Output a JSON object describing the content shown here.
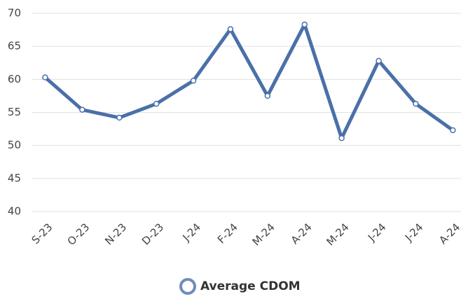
{
  "chart_data": {
    "type": "line",
    "categories": [
      "S-23",
      "O-23",
      "N-23",
      "D-23",
      "J-24",
      "F-24",
      "M-24",
      "A-24",
      "M-24",
      "J-24",
      "J-24",
      "A-24"
    ],
    "series": [
      {
        "name": "Average CDOM",
        "color": "#4a70a8",
        "values": [
          60.3,
          55.4,
          54.2,
          56.3,
          59.8,
          67.6,
          57.5,
          68.3,
          51.1,
          62.8,
          56.3,
          52.3
        ]
      }
    ],
    "ylim": [
      40,
      70
    ],
    "yticks": [
      40,
      45,
      50,
      55,
      60,
      65,
      70
    ],
    "grid": true,
    "legend": "bottom"
  }
}
